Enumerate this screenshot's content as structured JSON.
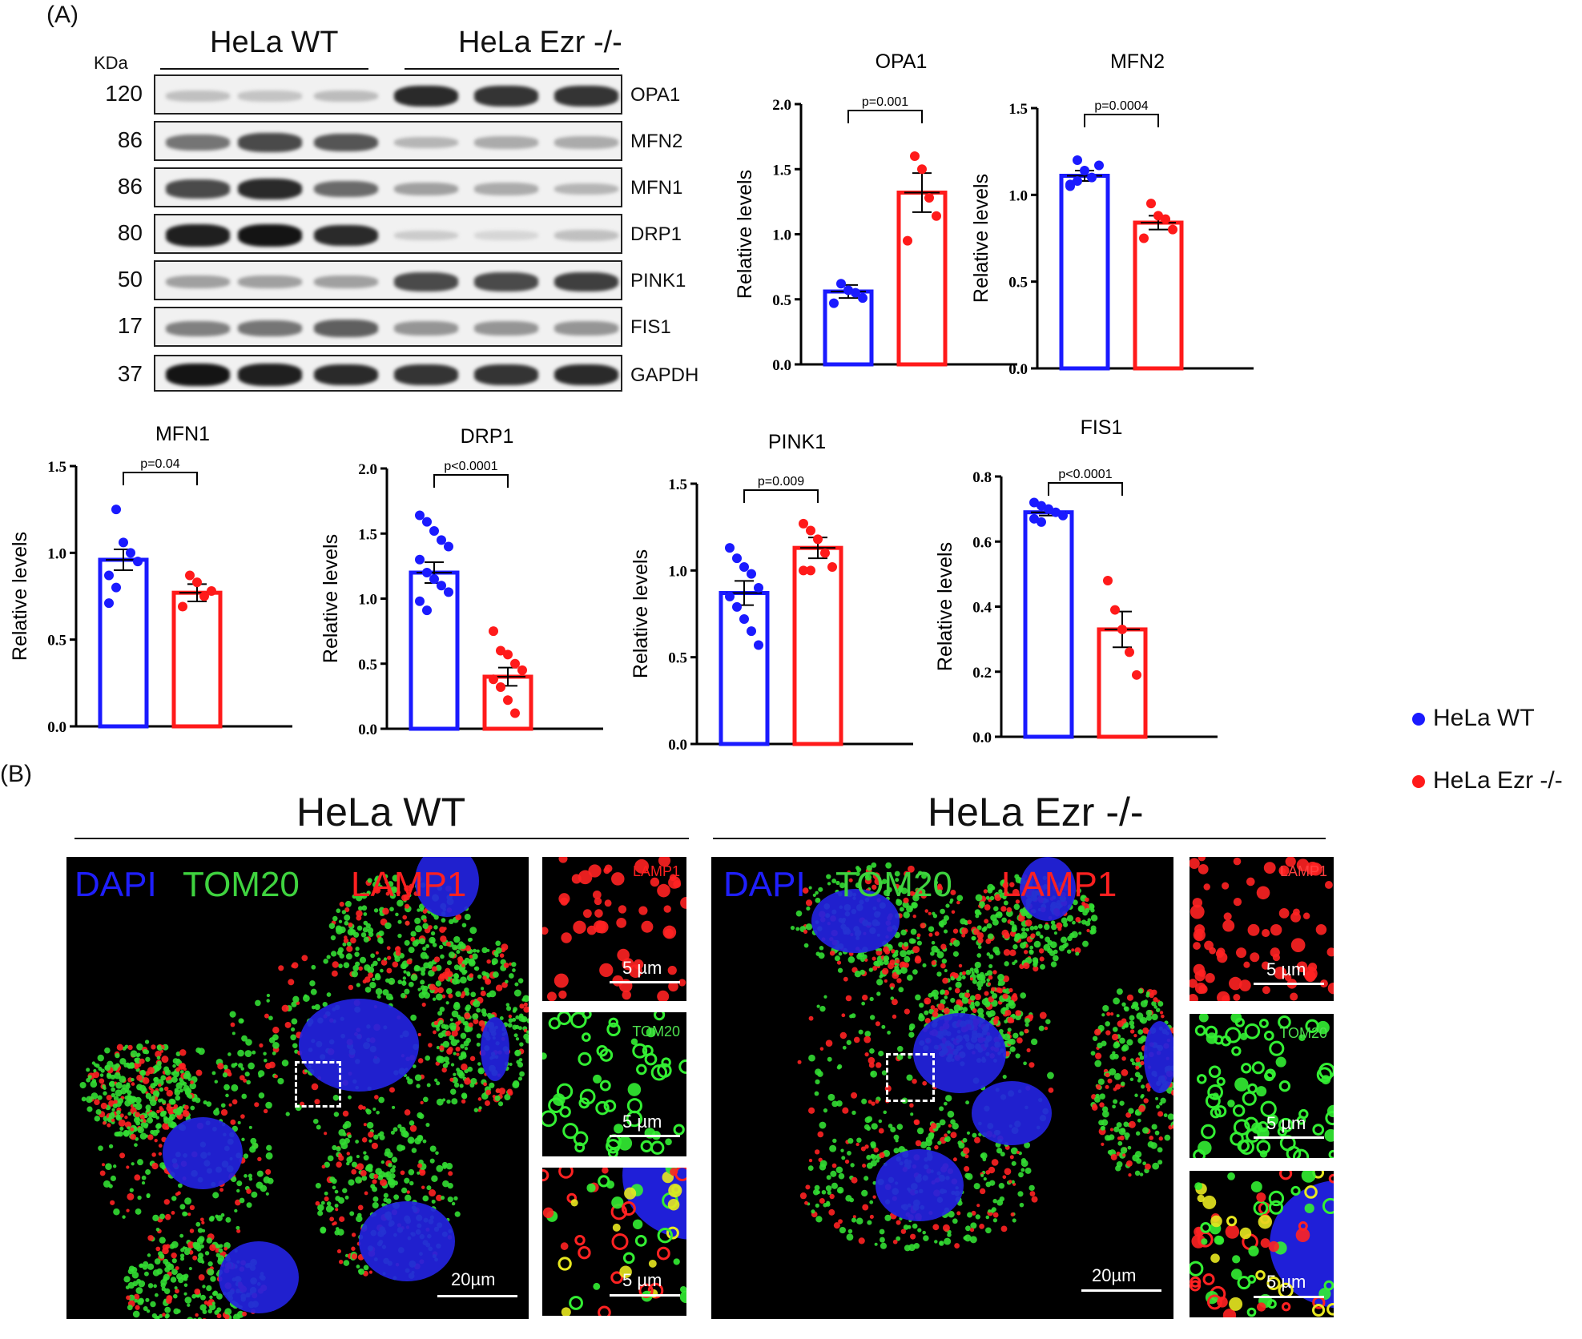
{
  "panelA": {
    "label": "(A)",
    "blot": {
      "group_wt": "HeLa WT",
      "group_ko": "HeLa Ezr -/-",
      "kda_label": "KDa",
      "rows": [
        {
          "mw": "120",
          "name": "OPA1",
          "wt": [
            0.2,
            0.18,
            0.22
          ],
          "ko": [
            0.9,
            0.85,
            0.85
          ]
        },
        {
          "mw": "86",
          "name": "MFN2",
          "wt": [
            0.55,
            0.75,
            0.7
          ],
          "ko": [
            0.25,
            0.3,
            0.3
          ]
        },
        {
          "mw": "86",
          "name": "MFN1",
          "wt": [
            0.75,
            0.9,
            0.6
          ],
          "ko": [
            0.35,
            0.3,
            0.25
          ]
        },
        {
          "mw": "80",
          "name": "DRP1",
          "wt": [
            0.95,
            1.0,
            0.9
          ],
          "ko": [
            0.15,
            0.1,
            0.2
          ]
        },
        {
          "mw": "50",
          "name": "PINK1",
          "wt": [
            0.35,
            0.35,
            0.35
          ],
          "ko": [
            0.75,
            0.75,
            0.8
          ]
        },
        {
          "mw": "17",
          "name": "FIS1",
          "wt": [
            0.5,
            0.55,
            0.65
          ],
          "ko": [
            0.4,
            0.4,
            0.4
          ]
        },
        {
          "mw": "37",
          "name": "GAPDH",
          "wt": [
            1.0,
            0.95,
            0.9
          ],
          "ko": [
            0.85,
            0.85,
            0.9
          ]
        }
      ]
    }
  },
  "chart_data": [
    {
      "type": "bar",
      "title": "OPA1",
      "ylabel": "Relative levels",
      "ylim": [
        0,
        2.0
      ],
      "yticks": [
        "0.0",
        "0.5",
        "1.0",
        "1.5",
        "2.0"
      ],
      "pvalue": "p=0.001",
      "categories": [
        "HeLa WT",
        "HeLa Ezr -/-"
      ],
      "values": [
        0.56,
        1.32
      ],
      "sem": [
        0.05,
        0.15
      ],
      "points": [
        [
          0.47,
          0.62,
          0.57,
          0.55,
          0.51
        ],
        [
          0.95,
          1.6,
          1.5,
          1.28,
          1.14
        ]
      ]
    },
    {
      "type": "bar",
      "title": "MFN2",
      "ylabel": "Relative levels",
      "ylim": [
        0,
        1.5
      ],
      "yticks": [
        "0.0",
        "0.5",
        "1.0",
        "1.5"
      ],
      "pvalue": "p=0.0004",
      "categories": [
        "HeLa WT",
        "HeLa Ezr -/-"
      ],
      "values": [
        1.11,
        0.84
      ],
      "sem": [
        0.03,
        0.04
      ],
      "points": [
        [
          1.06,
          1.2,
          1.14,
          1.1,
          1.17,
          1.05,
          1.08
        ],
        [
          0.75,
          0.95,
          0.88,
          0.86,
          0.8
        ]
      ]
    },
    {
      "type": "bar",
      "title": "MFN1",
      "ylabel": "Relative levels",
      "ylim": [
        0,
        1.5
      ],
      "yticks": [
        "0.0",
        "0.5",
        "1.0",
        "1.5"
      ],
      "pvalue": "p=0.04",
      "categories": [
        "HeLa WT",
        "HeLa Ezr -/-"
      ],
      "values": [
        0.96,
        0.77
      ],
      "sem": [
        0.06,
        0.05
      ],
      "points": [
        [
          0.71,
          1.25,
          1.06,
          1.0,
          0.95,
          0.87,
          0.8
        ],
        [
          0.69,
          0.87,
          0.83,
          0.75,
          0.78
        ]
      ]
    },
    {
      "type": "bar",
      "title": "DRP1",
      "ylabel": "Relative levels",
      "ylim": [
        0,
        2.0
      ],
      "yticks": [
        "0.0",
        "0.5",
        "1.0",
        "1.5",
        "2.0"
      ],
      "pvalue": "p<0.0001",
      "categories": [
        "HeLa WT",
        "HeLa Ezr -/-"
      ],
      "values": [
        1.2,
        0.4
      ],
      "sem": [
        0.08,
        0.07
      ],
      "points": [
        [
          1.64,
          1.59,
          1.52,
          1.45,
          1.4,
          1.3,
          1.2,
          1.15,
          1.1,
          1.05,
          0.98,
          0.91
        ],
        [
          0.75,
          0.6,
          0.57,
          0.5,
          0.45,
          0.38,
          0.32,
          0.22,
          0.12
        ]
      ]
    },
    {
      "type": "bar",
      "title": "PINK1",
      "ylabel": "Relative levels",
      "ylim": [
        0,
        1.5
      ],
      "yticks": [
        "0.0",
        "0.5",
        "1.0",
        "1.5"
      ],
      "pvalue": "p=0.009",
      "categories": [
        "HeLa WT",
        "HeLa Ezr -/-"
      ],
      "values": [
        0.87,
        1.13
      ],
      "sem": [
        0.07,
        0.06
      ],
      "points": [
        [
          1.13,
          1.07,
          1.02,
          0.98,
          0.9,
          0.85,
          0.79,
          0.72,
          0.65,
          0.57
        ],
        [
          1.27,
          1.23,
          1.18,
          1.1,
          1.02,
          1.0,
          1.0
        ]
      ]
    },
    {
      "type": "bar",
      "title": "FIS1",
      "ylabel": "Relative levels",
      "ylim": [
        0,
        0.8
      ],
      "yticks": [
        "0.0",
        "0.2",
        "0.4",
        "0.6",
        "0.8"
      ],
      "pvalue": "p<0.0001",
      "categories": [
        "HeLa WT",
        "HeLa Ezr -/-"
      ],
      "values": [
        0.69,
        0.33
      ],
      "sem": [
        0.01,
        0.055
      ],
      "points": [
        [
          0.72,
          0.71,
          0.7,
          0.69,
          0.68,
          0.67,
          0.66
        ],
        [
          0.48,
          0.39,
          0.33,
          0.26,
          0.19
        ]
      ]
    }
  ],
  "legend": {
    "wt": "HeLa WT",
    "ko": "HeLa Ezr -/-",
    "wt_color": "#1a1aff",
    "ko_color": "#ff1a1a"
  },
  "panelB": {
    "label": "(B)",
    "wt_title": "HeLa WT",
    "ko_title": "HeLa Ezr -/-",
    "channels": {
      "dapi": "DAPI",
      "tom20": "TOM20",
      "lamp1": "LAMP1"
    },
    "scale_main": "20µm",
    "scale_inset": "5 µm",
    "inset_lamp1": "LAMP1",
    "inset_tom20": "TOM20"
  }
}
